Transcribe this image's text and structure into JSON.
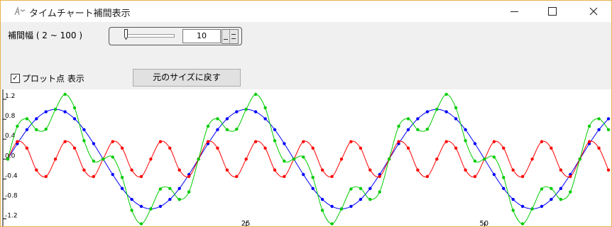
{
  "window": {
    "title": "タイムチャート補間表示",
    "icon": "app-logo-icon",
    "controls": [
      "minimize-icon",
      "maximize-icon",
      "close-icon"
    ]
  },
  "toolbar": {
    "interp_label": "補間幅 ( 2 ~ 100 )",
    "interp_value": "10",
    "slider_fraction": 0.08,
    "plot_checkbox_checked": true,
    "plot_label": "プロット点 表示",
    "reset_button_label": "元のサイズに戻す"
  },
  "chart_data": {
    "type": "line",
    "x_range": [
      0,
      63
    ],
    "ylim": [
      -1.35,
      1.4
    ],
    "y_ticks": [
      "1.2",
      "0.8",
      "0.4",
      "0.0",
      "-0.4",
      "-0.8",
      "-1.2"
    ],
    "x_ticks": [
      "25",
      "50"
    ],
    "grid": false,
    "series": [
      {
        "color": "#0000ff",
        "x": [
          0,
          1,
          2,
          3,
          4,
          5,
          6,
          7,
          8,
          9,
          10,
          11,
          12,
          13,
          14,
          15,
          16,
          17,
          18,
          19,
          20,
          21,
          22,
          23,
          24,
          25,
          26,
          27,
          28,
          29,
          30,
          31,
          32,
          33,
          34,
          35,
          36,
          37,
          38,
          39,
          40,
          41,
          42,
          43,
          44,
          45,
          46,
          47,
          48,
          49,
          50,
          51,
          52,
          53,
          54,
          55,
          56,
          57,
          58,
          59,
          60,
          61,
          62,
          63
        ],
        "values": [
          0.0,
          0.31,
          0.59,
          0.81,
          0.95,
          1.0,
          0.95,
          0.81,
          0.59,
          0.31,
          0.0,
          -0.31,
          -0.59,
          -0.81,
          -0.95,
          -1.0,
          -0.95,
          -0.81,
          -0.59,
          -0.31,
          0.0,
          0.31,
          0.59,
          0.81,
          0.95,
          1.0,
          0.95,
          0.81,
          0.59,
          0.31,
          0.0,
          -0.31,
          -0.59,
          -0.81,
          -0.95,
          -1.0,
          -0.95,
          -0.81,
          -0.59,
          -0.31,
          0.0,
          0.31,
          0.59,
          0.81,
          0.95,
          1.0,
          0.95,
          0.81,
          0.59,
          0.31,
          0.0,
          -0.31,
          -0.59,
          -0.81,
          -0.95,
          -1.0,
          -0.95,
          -0.81,
          -0.59,
          -0.31,
          0.0,
          0.31,
          0.59,
          0.81
        ]
      },
      {
        "color": "#ff0000",
        "x": [
          0,
          1,
          2,
          3,
          4,
          5,
          6,
          7,
          8,
          9,
          10,
          11,
          12,
          13,
          14,
          15,
          16,
          17,
          18,
          19,
          20,
          21,
          22,
          23,
          24,
          25,
          26,
          27,
          28,
          29,
          30,
          31,
          32,
          33,
          34,
          35,
          36,
          37,
          38,
          39,
          40,
          41,
          42,
          43,
          44,
          45,
          46,
          47,
          48,
          49,
          50,
          51,
          52,
          53,
          54,
          55,
          56,
          57,
          58,
          59,
          60,
          61,
          62,
          63
        ],
        "values": [
          0.0,
          0.35,
          0.22,
          -0.22,
          -0.35,
          0.0,
          0.35,
          0.22,
          -0.22,
          -0.35,
          0.0,
          0.35,
          0.22,
          -0.22,
          -0.35,
          0.0,
          0.35,
          0.22,
          -0.22,
          -0.35,
          0.0,
          0.35,
          0.22,
          -0.22,
          -0.35,
          0.0,
          0.35,
          0.22,
          -0.22,
          -0.35,
          0.0,
          0.35,
          0.22,
          -0.22,
          -0.35,
          0.0,
          0.35,
          0.22,
          -0.22,
          -0.35,
          0.0,
          0.35,
          0.22,
          -0.22,
          -0.35,
          0.0,
          0.35,
          0.22,
          -0.22,
          -0.35,
          0.0,
          0.35,
          0.22,
          -0.22,
          -0.35,
          0.0,
          0.35,
          0.22,
          -0.22,
          -0.35,
          0.0,
          0.35,
          0.22,
          -0.22
        ]
      },
      {
        "color": "#00cc00",
        "x": [
          0,
          1,
          2,
          3,
          4,
          5,
          6,
          7,
          8,
          9,
          10,
          11,
          12,
          13,
          14,
          15,
          16,
          17,
          18,
          19,
          20,
          21,
          22,
          23,
          24,
          25,
          26,
          27,
          28,
          29,
          30,
          31,
          32,
          33,
          34,
          35,
          36,
          37,
          38,
          39,
          40,
          41,
          42,
          43,
          44,
          45,
          46,
          47,
          48,
          49,
          50,
          51,
          52,
          53,
          54,
          55,
          56,
          57,
          58,
          59,
          60,
          61,
          62,
          63
        ],
        "values": [
          0.0,
          0.66,
          0.81,
          0.59,
          0.6,
          1.0,
          1.3,
          1.03,
          0.37,
          -0.04,
          0.0,
          0.04,
          -0.37,
          -1.03,
          -1.3,
          -1.0,
          -0.6,
          -0.59,
          -0.81,
          -0.66,
          0.0,
          0.66,
          0.81,
          0.59,
          0.6,
          1.0,
          1.3,
          1.03,
          0.37,
          -0.04,
          0.0,
          0.04,
          -0.37,
          -1.03,
          -1.3,
          -1.0,
          -0.6,
          -0.59,
          -0.81,
          -0.66,
          0.0,
          0.66,
          0.81,
          0.59,
          0.6,
          1.0,
          1.3,
          1.03,
          0.37,
          -0.04,
          0.0,
          0.04,
          -0.37,
          -1.03,
          -1.3,
          -1.0,
          -0.6,
          -0.59,
          -0.81,
          -0.66,
          0.0,
          0.66,
          0.81,
          0.59
        ]
      }
    ]
  }
}
